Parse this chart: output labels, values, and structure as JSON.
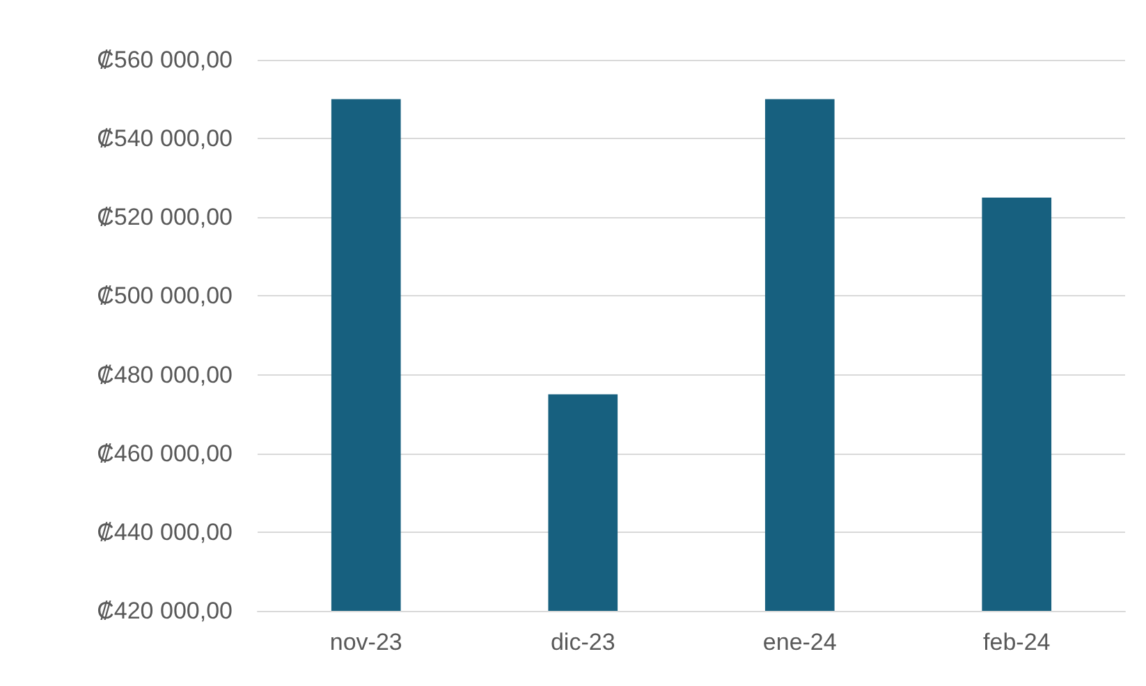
{
  "chart_data": {
    "type": "bar",
    "categories": [
      "nov-23",
      "dic-23",
      "ene-24",
      "feb-24"
    ],
    "values": [
      550000,
      475000,
      550000,
      525000
    ],
    "color": "#17607f",
    "ylim": [
      420000,
      560000
    ],
    "yticks": [
      {
        "value": 420000,
        "label": "₡420 000,00"
      },
      {
        "value": 440000,
        "label": "₡440 000,00"
      },
      {
        "value": 460000,
        "label": "₡460 000,00"
      },
      {
        "value": 480000,
        "label": "₡480 000,00"
      },
      {
        "value": 500000,
        "label": "₡500 000,00"
      },
      {
        "value": 520000,
        "label": "₡520 000,00"
      },
      {
        "value": 540000,
        "label": "₡540 000,00"
      },
      {
        "value": 560000,
        "label": "₡560 000,00"
      }
    ],
    "grid": "y"
  }
}
